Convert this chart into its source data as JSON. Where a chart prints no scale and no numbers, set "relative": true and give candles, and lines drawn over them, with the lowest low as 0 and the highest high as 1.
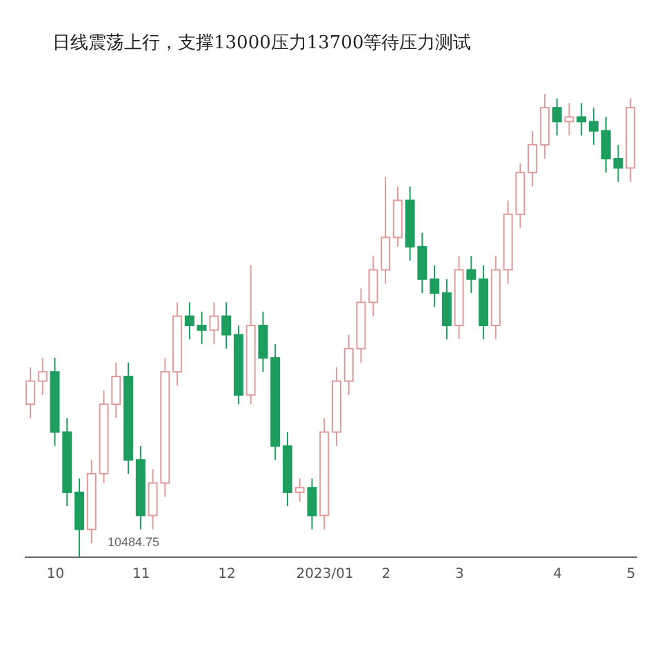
{
  "chart_data": {
    "type": "candlestick",
    "title": "日线震荡上行，支撑13000压力13700等待压力测试",
    "relative": true,
    "categories": [
      null,
      null,
      "10",
      null,
      null,
      null,
      null,
      null,
      null,
      "11",
      null,
      null,
      null,
      null,
      null,
      null,
      "12",
      null,
      null,
      null,
      null,
      null,
      null,
      null,
      "2023/01",
      null,
      null,
      null,
      null,
      "2",
      null,
      null,
      null,
      null,
      null,
      "3",
      null,
      null,
      null,
      null,
      null,
      null,
      null,
      "4",
      null,
      null,
      null,
      null,
      null,
      "5"
    ],
    "ohlc": [
      [
        0.33,
        0.41,
        0.3,
        0.38
      ],
      [
        0.38,
        0.43,
        0.35,
        0.4
      ],
      [
        0.4,
        0.43,
        0.24,
        0.27
      ],
      [
        0.27,
        0.3,
        0.11,
        0.14
      ],
      [
        0.14,
        0.17,
        0,
        0.06
      ],
      [
        0.06,
        0.21,
        0.03,
        0.18
      ],
      [
        0.18,
        0.36,
        0.16,
        0.33
      ],
      [
        0.33,
        0.42,
        0.3,
        0.39
      ],
      [
        0.39,
        0.42,
        0.18,
        0.21
      ],
      [
        0.21,
        0.24,
        0.06,
        0.09
      ],
      [
        0.09,
        0.19,
        0.06,
        0.16
      ],
      [
        0.16,
        0.43,
        0.13,
        0.4
      ],
      [
        0.4,
        0.55,
        0.37,
        0.52
      ],
      [
        0.52,
        0.55,
        0.47,
        0.5
      ],
      [
        0.5,
        0.53,
        0.46,
        0.49
      ],
      [
        0.49,
        0.55,
        0.46,
        0.52
      ],
      [
        0.52,
        0.55,
        0.45,
        0.48
      ],
      [
        0.48,
        0.5,
        0.33,
        0.35
      ],
      [
        0.35,
        0.63,
        0.33,
        0.5
      ],
      [
        0.5,
        0.53,
        0.4,
        0.43
      ],
      [
        0.43,
        0.46,
        0.21,
        0.24
      ],
      [
        0.24,
        0.27,
        0.11,
        0.14
      ],
      [
        0.14,
        0.17,
        0.12,
        0.15
      ],
      [
        0.15,
        0.17,
        0.06,
        0.09
      ],
      [
        0.09,
        0.3,
        0.06,
        0.27
      ],
      [
        0.27,
        0.41,
        0.24,
        0.38
      ],
      [
        0.38,
        0.48,
        0.35,
        0.45
      ],
      [
        0.45,
        0.58,
        0.42,
        0.55
      ],
      [
        0.55,
        0.65,
        0.52,
        0.62
      ],
      [
        0.62,
        0.82,
        0.59,
        0.69
      ],
      [
        0.69,
        0.8,
        0.67,
        0.77
      ],
      [
        0.77,
        0.8,
        0.64,
        0.67
      ],
      [
        0.67,
        0.7,
        0.57,
        0.6
      ],
      [
        0.6,
        0.63,
        0.54,
        0.57
      ],
      [
        0.57,
        0.6,
        0.47,
        0.5
      ],
      [
        0.5,
        0.65,
        0.47,
        0.62
      ],
      [
        0.62,
        0.65,
        0.57,
        0.6
      ],
      [
        0.6,
        0.63,
        0.47,
        0.5
      ],
      [
        0.5,
        0.65,
        0.47,
        0.62
      ],
      [
        0.62,
        0.77,
        0.59,
        0.74
      ],
      [
        0.74,
        0.85,
        0.71,
        0.83
      ],
      [
        0.83,
        0.92,
        0.8,
        0.89
      ],
      [
        0.89,
        1,
        0.86,
        0.97
      ],
      [
        0.97,
        0.99,
        0.91,
        0.94
      ],
      [
        0.94,
        0.98,
        0.91,
        0.95
      ],
      [
        0.95,
        0.98,
        0.91,
        0.94
      ],
      [
        0.94,
        0.97,
        0.89,
        0.92
      ],
      [
        0.92,
        0.95,
        0.83,
        0.86
      ],
      [
        0.86,
        0.89,
        0.81,
        0.84
      ],
      [
        0.84,
        0.99,
        0.81,
        0.97
      ]
    ],
    "colors": [
      "#e39a9a",
      "#e39a9a",
      "#1e9e5e",
      "#1e9e5e",
      "#1e9e5e",
      "#e39a9a",
      "#e39a9a",
      "#e39a9a",
      "#1e9e5e",
      "#1e9e5e",
      "#e39a9a",
      "#e39a9a",
      "#e39a9a",
      "#1e9e5e",
      "#1e9e5e",
      "#e39a9a",
      "#1e9e5e",
      "#1e9e5e",
      "#e39a9a",
      "#1e9e5e",
      "#1e9e5e",
      "#1e9e5e",
      "#e39a9a",
      "#1e9e5e",
      "#e39a9a",
      "#e39a9a",
      "#e39a9a",
      "#e39a9a",
      "#e39a9a",
      "#e39a9a",
      "#e39a9a",
      "#1e9e5e",
      "#1e9e5e",
      "#1e9e5e",
      "#1e9e5e",
      "#e39a9a",
      "#1e9e5e",
      "#1e9e5e",
      "#e39a9a",
      "#e39a9a",
      "#e39a9a",
      "#e39a9a",
      "#e39a9a",
      "#1e9e5e",
      "#e39a9a",
      "#1e9e5e",
      "#1e9e5e",
      "#1e9e5e",
      "#1e9e5e",
      "#e39a9a"
    ],
    "annotations": [
      "10484.75"
    ]
  }
}
